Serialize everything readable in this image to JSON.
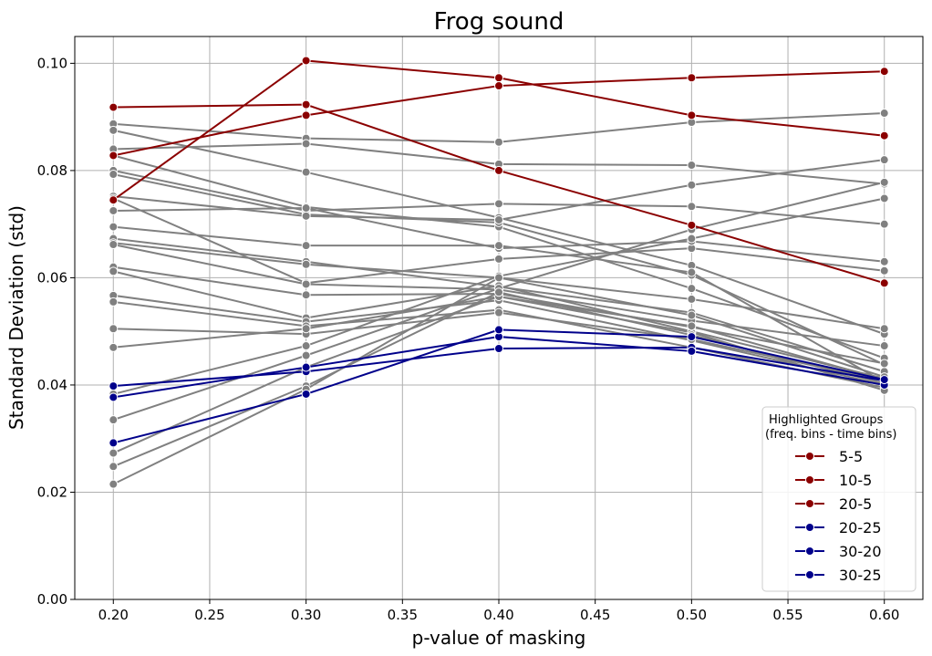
{
  "chart_data": {
    "type": "line",
    "title": "Frog sound",
    "xlabel": "p-value of masking",
    "ylabel": "Standard Deviation (std)",
    "x": [
      0.2,
      0.3,
      0.4,
      0.5,
      0.6
    ],
    "xlim": [
      0.18,
      0.62
    ],
    "ylim": [
      0.0,
      0.105
    ],
    "xticks": [
      "0.20",
      "0.25",
      "0.30",
      "0.35",
      "0.40",
      "0.45",
      "0.50",
      "0.55",
      "0.60"
    ],
    "yticks": [
      "0.00",
      "0.02",
      "0.04",
      "0.06",
      "0.08",
      "0.10"
    ],
    "grid": true,
    "legend": {
      "title_line1": "Highlighted Groups",
      "title_line2": "(freq. bins - time bins)",
      "placement": "lower-right"
    },
    "colors": {
      "background_series": "#808080",
      "red": "#8b0000",
      "blue": "#00008b",
      "grid": "#b0b0b0"
    },
    "background_series": [
      [
        0.0887,
        0.086,
        0.0853,
        0.089,
        0.0907
      ],
      [
        0.0875,
        0.0797,
        0.0712,
        0.0623,
        0.0495
      ],
      [
        0.084,
        0.085,
        0.0812,
        0.081,
        0.0775
      ],
      [
        0.0828,
        0.0732,
        0.0695,
        0.058,
        0.045
      ],
      [
        0.08,
        0.0725,
        0.0738,
        0.0733,
        0.07
      ],
      [
        0.0793,
        0.0718,
        0.0703,
        0.0605,
        0.0438
      ],
      [
        0.0752,
        0.0715,
        0.0708,
        0.0773,
        0.082
      ],
      [
        0.0748,
        0.059,
        0.0635,
        0.0655,
        0.0613
      ],
      [
        0.0725,
        0.073,
        0.0655,
        0.0668,
        0.063
      ],
      [
        0.0695,
        0.066,
        0.066,
        0.061,
        0.0405
      ],
      [
        0.0673,
        0.063,
        0.0583,
        0.0535,
        0.0425
      ],
      [
        0.0665,
        0.0625,
        0.06,
        0.056,
        0.0505
      ],
      [
        0.0662,
        0.0588,
        0.0578,
        0.052,
        0.0473
      ],
      [
        0.062,
        0.0568,
        0.057,
        0.0508,
        0.044
      ],
      [
        0.0612,
        0.0525,
        0.0585,
        0.05,
        0.0412
      ],
      [
        0.0567,
        0.0518,
        0.0558,
        0.0483,
        0.04
      ],
      [
        0.0555,
        0.051,
        0.054,
        0.047,
        0.0395
      ],
      [
        0.0505,
        0.0495,
        0.0535,
        0.0485,
        0.0408
      ],
      [
        0.047,
        0.0505,
        0.0565,
        0.0498,
        0.039
      ],
      [
        0.0383,
        0.0473,
        0.0603,
        0.0673,
        0.0748
      ],
      [
        0.0335,
        0.0455,
        0.058,
        0.069,
        0.0778
      ],
      [
        0.0273,
        0.0433,
        0.0565,
        0.051,
        0.041
      ],
      [
        0.0248,
        0.0398,
        0.0573,
        0.0493,
        0.0403
      ],
      [
        0.0215,
        0.0392,
        0.06,
        0.053,
        0.0415
      ]
    ],
    "series": [
      {
        "name": "5-5",
        "color": "#8b0000",
        "values": [
          0.0918,
          0.0923,
          0.08,
          0.0698,
          0.059
        ]
      },
      {
        "name": "10-5",
        "color": "#8b0000",
        "values": [
          0.0745,
          0.1005,
          0.0973,
          0.0903,
          0.0865
        ]
      },
      {
        "name": "20-5",
        "color": "#8b0000",
        "values": [
          0.0828,
          0.0903,
          0.0958,
          0.0973,
          0.0985
        ]
      },
      {
        "name": "20-25",
        "color": "#00008b",
        "values": [
          0.0398,
          0.0425,
          0.0468,
          0.047,
          0.0408
        ]
      },
      {
        "name": "30-20",
        "color": "#00008b",
        "values": [
          0.0377,
          0.0433,
          0.049,
          0.0463,
          0.04
        ]
      },
      {
        "name": "30-25",
        "color": "#00008b",
        "values": [
          0.0292,
          0.0383,
          0.0503,
          0.049,
          0.041
        ]
      }
    ]
  }
}
